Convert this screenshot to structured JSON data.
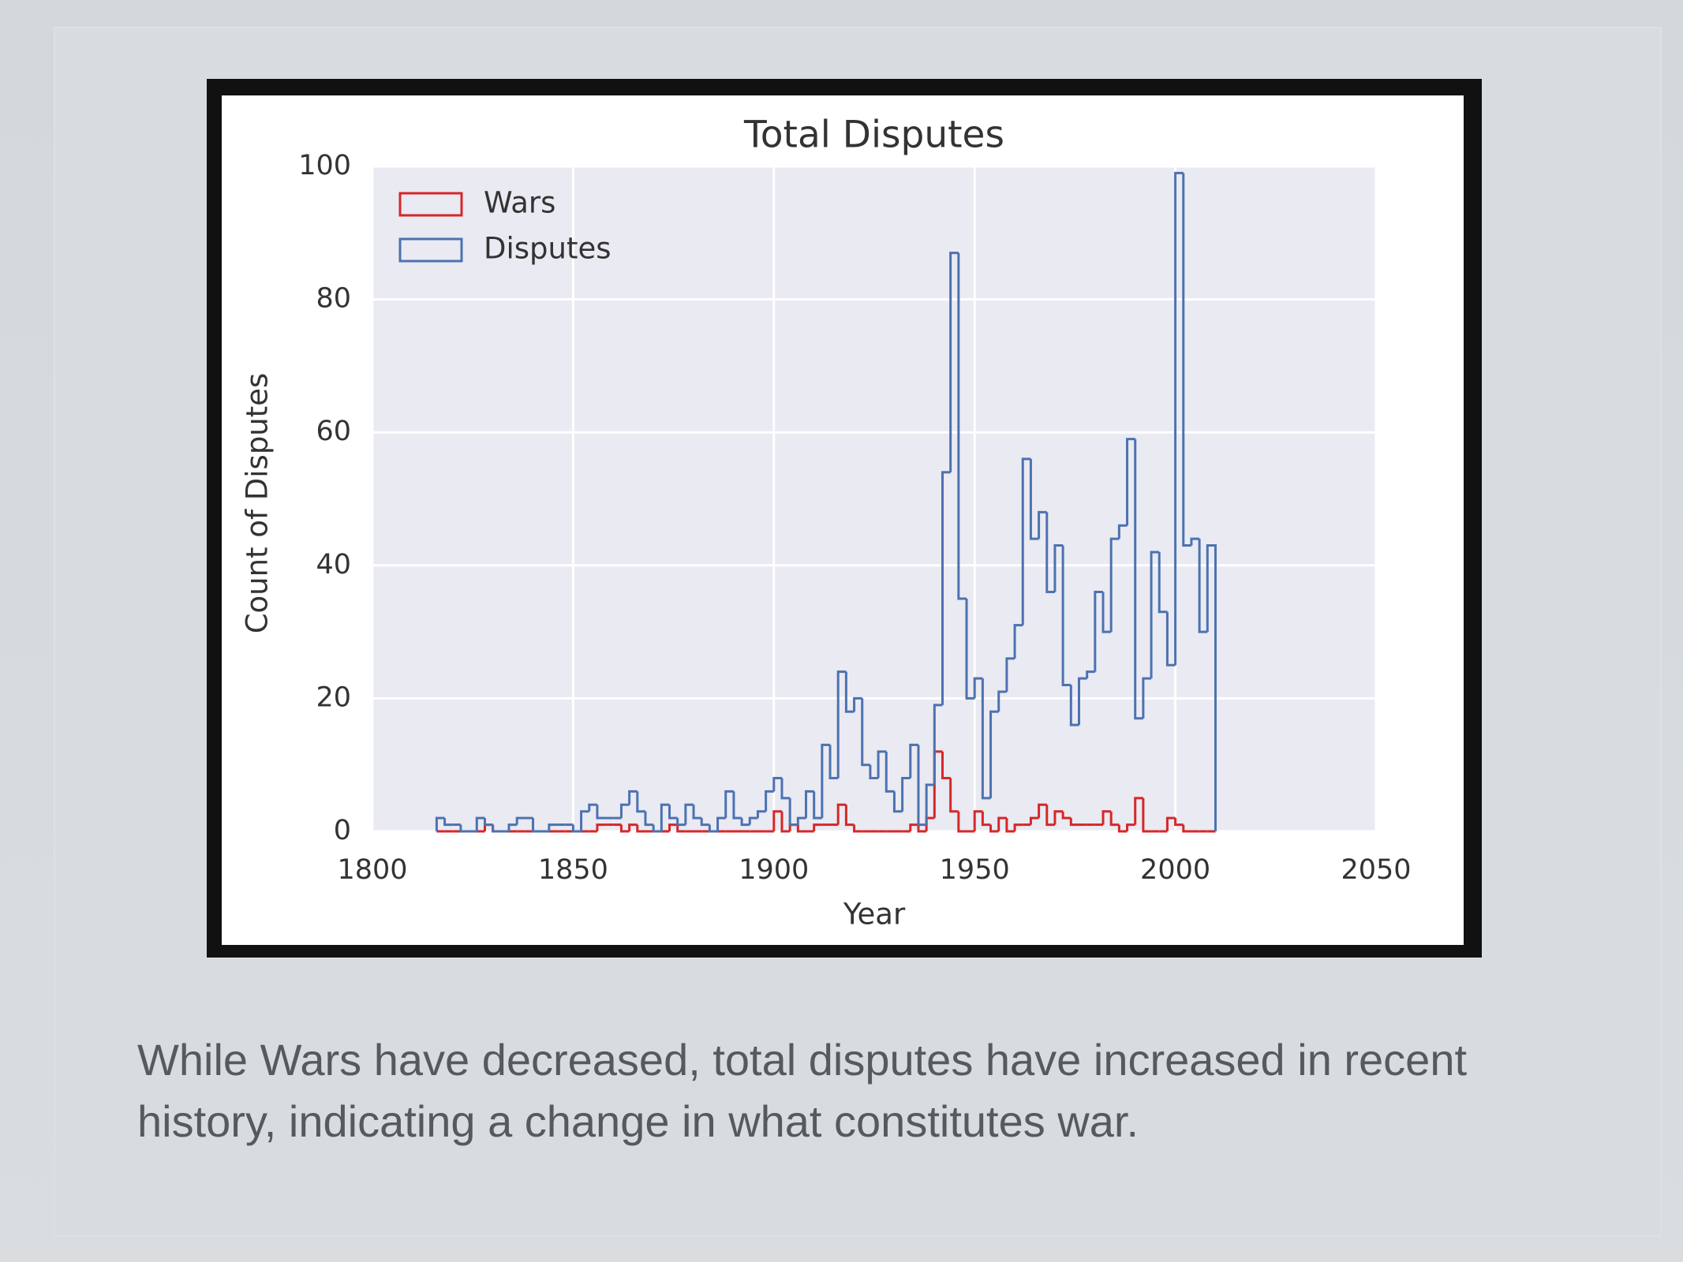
{
  "chart_data": {
    "type": "step-histogram",
    "title": "Total Disputes",
    "x_label": "Year",
    "y_label": "Count of Disputes",
    "bins": [
      1816,
      1818,
      1820,
      1822,
      1824,
      1826,
      1828,
      1830,
      1832,
      1834,
      1836,
      1838,
      1840,
      1842,
      1844,
      1846,
      1848,
      1850,
      1852,
      1854,
      1856,
      1858,
      1860,
      1862,
      1864,
      1866,
      1868,
      1870,
      1872,
      1874,
      1876,
      1878,
      1880,
      1882,
      1884,
      1886,
      1888,
      1890,
      1892,
      1894,
      1896,
      1898,
      1900,
      1902,
      1904,
      1906,
      1908,
      1910,
      1912,
      1914,
      1916,
      1918,
      1920,
      1922,
      1924,
      1926,
      1928,
      1930,
      1932,
      1934,
      1936,
      1938,
      1940,
      1942,
      1944,
      1946,
      1948,
      1950,
      1952,
      1954,
      1956,
      1958,
      1960,
      1962,
      1964,
      1966,
      1968,
      1970,
      1972,
      1974,
      1976,
      1978,
      1980,
      1982,
      1984,
      1986,
      1988,
      1990,
      1992,
      1994,
      1996,
      1998,
      2000,
      2002,
      2004,
      2006,
      2008,
      2010
    ],
    "series": [
      {
        "name": "Wars",
        "color": "#d62728",
        "values": [
          0,
          0,
          0,
          0,
          0,
          0,
          1,
          0,
          0,
          0,
          0,
          0,
          0,
          0,
          0,
          0,
          0,
          0,
          0,
          0,
          1,
          1,
          1,
          0,
          1,
          0,
          0,
          0,
          0,
          1,
          0,
          0,
          0,
          0,
          0,
          0,
          0,
          0,
          0,
          0,
          0,
          0,
          3,
          0,
          1,
          0,
          0,
          1,
          1,
          1,
          4,
          1,
          0,
          0,
          0,
          0,
          0,
          0,
          0,
          1,
          0,
          2,
          12,
          8,
          3,
          0,
          0,
          3,
          1,
          0,
          2,
          0,
          1,
          1,
          2,
          4,
          1,
          3,
          2,
          1,
          1,
          1,
          1,
          3,
          1,
          0,
          1,
          5,
          0,
          0,
          0,
          2,
          1,
          0,
          0,
          0,
          0
        ]
      },
      {
        "name": "Disputes",
        "color": "#4c72b0",
        "values": [
          2,
          1,
          1,
          0,
          0,
          2,
          1,
          0,
          0,
          1,
          2,
          2,
          0,
          0,
          1,
          1,
          1,
          0,
          3,
          4,
          2,
          2,
          2,
          4,
          6,
          3,
          1,
          0,
          4,
          2,
          1,
          4,
          2,
          1,
          0,
          2,
          6,
          2,
          1,
          2,
          3,
          6,
          8,
          5,
          1,
          2,
          6,
          2,
          13,
          8,
          24,
          18,
          20,
          10,
          8,
          12,
          6,
          3,
          8,
          13,
          1,
          7,
          19,
          54,
          87,
          35,
          20,
          23,
          5,
          18,
          21,
          26,
          31,
          56,
          44,
          48,
          36,
          43,
          22,
          16,
          23,
          24,
          36,
          30,
          44,
          46,
          59,
          17,
          23,
          42,
          33,
          25,
          99,
          43,
          44,
          30,
          43
        ]
      }
    ],
    "xlim": [
      1800,
      2050
    ],
    "xticks": [
      1800,
      1850,
      1900,
      1950,
      2000,
      2050
    ],
    "ylim": [
      0,
      100
    ],
    "yticks": [
      0,
      20,
      40,
      60,
      80,
      100
    ],
    "grid": true,
    "legend": "upper left"
  },
  "caption": "While Wars have decreased, total disputes have increased in recent history, indicating a change in what constitutes war."
}
